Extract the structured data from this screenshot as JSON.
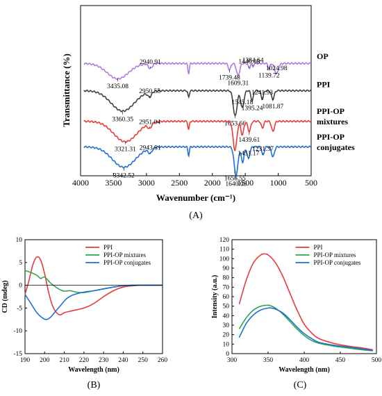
{
  "figure": {
    "panel_labels": [
      "(A)",
      "(B)",
      "(C)"
    ]
  },
  "chart_data": [
    {
      "type": "line",
      "panel": "(A)",
      "xlabel": "Wavenumber (cm⁻¹)",
      "ylabel": "Transmittance (%)",
      "xlim": [
        4000,
        500
      ],
      "x_ticks": [
        4000,
        3500,
        3000,
        2500,
        2000,
        1500,
        1000,
        500
      ],
      "series": [
        {
          "name": "OP",
          "label_lines": [
            "OP"
          ],
          "color": "#b07be0",
          "baseline": 0.66,
          "peaks": [
            {
              "x": 3435.08,
              "depth": 0.09,
              "width": 230
            },
            {
              "x": 2940.91,
              "depth": 0.03,
              "width": 40
            },
            {
              "x": 2360,
              "depth": 0.06,
              "width": 15
            },
            {
              "x": 1739.48,
              "depth": 0.04,
              "width": 25
            },
            {
              "x": 1609.31,
              "depth": 0.07,
              "width": 35
            },
            {
              "x": 1440.08,
              "depth": 0.03,
              "width": 20
            },
            {
              "x": 1384.64,
              "depth": 0.02,
              "width": 15
            },
            {
              "x": 1139.72,
              "depth": 0.03,
              "width": 20
            },
            {
              "x": 1024.98,
              "depth": 0.06,
              "width": 40
            }
          ],
          "annotations": [
            {
              "text": "3435.08",
              "x": 3435.08
            },
            {
              "text": "2940.91",
              "x": 2940.91
            },
            {
              "text": "1739.48",
              "x": 1739.48
            },
            {
              "text": "1384.64",
              "x": 1384.64
            },
            {
              "text": "1609.31",
              "x": 1609.31
            },
            {
              "text": "1440.08",
              "x": 1440.08
            },
            {
              "text": "1139.72",
              "x": 1139.72
            },
            {
              "text": "1024.98",
              "x": 1024.98
            }
          ]
        },
        {
          "name": "PPI",
          "label_lines": [
            "PPI"
          ],
          "color": "#404040",
          "baseline": 0.5,
          "peaks": [
            {
              "x": 3360.35,
              "depth": 0.12,
              "width": 250
            },
            {
              "x": 2950.55,
              "depth": 0.03,
              "width": 40
            },
            {
              "x": 2360,
              "depth": 0.04,
              "width": 15
            },
            {
              "x": 1653.66,
              "depth": 0.15,
              "width": 40
            },
            {
              "x": 1545.18,
              "depth": 0.1,
              "width": 35
            },
            {
              "x": 1395.24,
              "depth": 0.06,
              "width": 25
            },
            {
              "x": 1241.93,
              "depth": 0.05,
              "width": 25
            },
            {
              "x": 1081.87,
              "depth": 0.05,
              "width": 30
            }
          ],
          "annotations": [
            {
              "text": "3360.35",
              "x": 3360.35
            },
            {
              "text": "2950.55",
              "x": 2950.55
            },
            {
              "text": "1653.66",
              "x": 1653.66
            },
            {
              "text": "1545.18",
              "x": 1545.18
            },
            {
              "text": "1395.24",
              "x": 1395.24
            },
            {
              "text": "1241.93",
              "x": 1241.93
            },
            {
              "text": "1081.87",
              "x": 1081.87
            }
          ]
        },
        {
          "name": "PPI-OP mixtures",
          "label_lines": [
            "PPI-OP",
            "mixtures"
          ],
          "color": "#e83a3a",
          "baseline": 0.32,
          "peaks": [
            {
              "x": 3321.31,
              "depth": 0.12,
              "width": 250
            },
            {
              "x": 2951.04,
              "depth": 0.03,
              "width": 40
            },
            {
              "x": 2360,
              "depth": 0.05,
              "width": 15
            },
            {
              "x": 1656.55,
              "depth": 0.17,
              "width": 40
            },
            {
              "x": 1545,
              "depth": 0.08,
              "width": 30
            },
            {
              "x": 1439.61,
              "depth": 0.06,
              "width": 30
            },
            {
              "x": 1240,
              "depth": 0.04,
              "width": 25
            },
            {
              "x": 1080,
              "depth": 0.06,
              "width": 30
            }
          ],
          "annotations": [
            {
              "text": "3321.31",
              "x": 3321.31
            },
            {
              "text": "2951.04",
              "x": 2951.04
            },
            {
              "text": "1439.61",
              "x": 1439.61
            }
          ]
        },
        {
          "name": "PPI-OP conjugates",
          "label_lines": [
            "PPI-OP",
            "conjugates"
          ],
          "color": "#1f6fd6",
          "baseline": 0.17,
          "peaks": [
            {
              "x": 3342.52,
              "depth": 0.12,
              "width": 250
            },
            {
              "x": 2943.81,
              "depth": 0.03,
              "width": 40
            },
            {
              "x": 2360,
              "depth": 0.05,
              "width": 15
            },
            {
              "x": 1640.09,
              "depth": 0.17,
              "width": 40
            },
            {
              "x": 1540,
              "depth": 0.09,
              "width": 30
            },
            {
              "x": 1451.17,
              "depth": 0.07,
              "width": 30
            },
            {
              "x": 1231.37,
              "depth": 0.05,
              "width": 25
            },
            {
              "x": 1080,
              "depth": 0.06,
              "width": 30
            }
          ],
          "annotations": [
            {
              "text": "3342.52",
              "x": 3342.52
            },
            {
              "text": "2943.81",
              "x": 2943.81
            },
            {
              "text": "1656.55",
              "x": 1656.55
            },
            {
              "text": "1451.17",
              "x": 1451.17
            },
            {
              "text": "1640.09",
              "x": 1640.09
            },
            {
              "text": "1231.37",
              "x": 1231.37
            }
          ]
        }
      ]
    },
    {
      "type": "line",
      "panel": "(B)",
      "xlabel": "Wavelength (nm)",
      "ylabel": "CD (mdeg)",
      "xlim": [
        190,
        260
      ],
      "ylim": [
        -15,
        10
      ],
      "x_ticks": [
        190,
        200,
        210,
        220,
        230,
        240,
        250,
        260
      ],
      "y_ticks": [
        10,
        5,
        0,
        -5,
        -10,
        -15
      ],
      "legend": "top-right",
      "series": [
        {
          "name": "PPI",
          "color": "#e83a3a",
          "x": [
            190,
            192,
            194,
            196,
            198,
            200,
            202,
            204,
            206,
            208,
            210,
            212,
            215,
            220,
            225,
            230,
            235,
            240,
            245,
            250,
            260
          ],
          "y": [
            -2,
            1,
            4.5,
            6.2,
            5.5,
            2.5,
            -1.5,
            -4.5,
            -6,
            -6.5,
            -6,
            -5.8,
            -5.5,
            -5,
            -4,
            -2.5,
            -1.2,
            -0.4,
            -0.1,
            0,
            0
          ]
        },
        {
          "name": "PPI-OP mixtures",
          "color": "#2aa84a",
          "x": [
            190,
            193,
            196,
            198,
            200,
            203,
            206,
            208,
            210,
            213,
            216,
            220,
            225,
            230,
            235,
            240,
            245,
            250,
            260
          ],
          "y": [
            3.2,
            2.8,
            2.2,
            1.5,
            1.8,
            0.5,
            -0.5,
            -1,
            -1.3,
            -1.2,
            -1.5,
            -1.6,
            -1.2,
            -0.8,
            -0.4,
            -0.1,
            0,
            0,
            0
          ]
        },
        {
          "name": "PPI-OP conjugates",
          "color": "#1f6fd6",
          "x": [
            190,
            193,
            196,
            199,
            201,
            203,
            205,
            208,
            211,
            214,
            217,
            220,
            225,
            230,
            235,
            240,
            245,
            250,
            260
          ],
          "y": [
            -2,
            -4,
            -6,
            -7.2,
            -7.5,
            -7,
            -6,
            -4.5,
            -3,
            -2.2,
            -1.8,
            -1.5,
            -1.2,
            -0.8,
            -0.4,
            -0.1,
            0,
            0,
            0
          ]
        }
      ]
    },
    {
      "type": "line",
      "panel": "(C)",
      "xlabel": "Wavelength (nm)",
      "ylabel": "Intensity (a.u.)",
      "xlim": [
        300,
        500
      ],
      "ylim": [
        0,
        120
      ],
      "x_ticks": [
        300,
        350,
        400,
        450,
        500
      ],
      "y_ticks": [
        0,
        10,
        20,
        30,
        40,
        50,
        60,
        70,
        80,
        90,
        100,
        110,
        120
      ],
      "legend": "top-right",
      "series": [
        {
          "name": "PPI",
          "color": "#e83a3a",
          "x": [
            310,
            320,
            330,
            340,
            345,
            350,
            360,
            370,
            380,
            390,
            400,
            410,
            420,
            440,
            460,
            480,
            495
          ],
          "y": [
            52,
            78,
            96,
            104,
            105,
            104,
            96,
            82,
            64,
            46,
            31,
            22,
            16,
            11,
            8,
            6,
            4
          ]
        },
        {
          "name": "PPI-OP mixtures",
          "color": "#2aa84a",
          "x": [
            310,
            320,
            330,
            340,
            350,
            355,
            360,
            370,
            380,
            390,
            400,
            410,
            420,
            440,
            460,
            480,
            495
          ],
          "y": [
            26,
            38,
            46,
            50,
            51,
            50,
            48,
            42,
            34,
            26,
            19,
            14,
            11,
            8,
            6,
            4,
            3
          ]
        },
        {
          "name": "PPI-OP conjugates",
          "color": "#1f6fd6",
          "x": [
            310,
            320,
            330,
            340,
            350,
            355,
            360,
            370,
            380,
            390,
            400,
            410,
            420,
            440,
            460,
            480,
            495
          ],
          "y": [
            17,
            32,
            41,
            46,
            48,
            48,
            47,
            43,
            36,
            28,
            21,
            16,
            12,
            9,
            7,
            5,
            3
          ]
        }
      ]
    }
  ]
}
